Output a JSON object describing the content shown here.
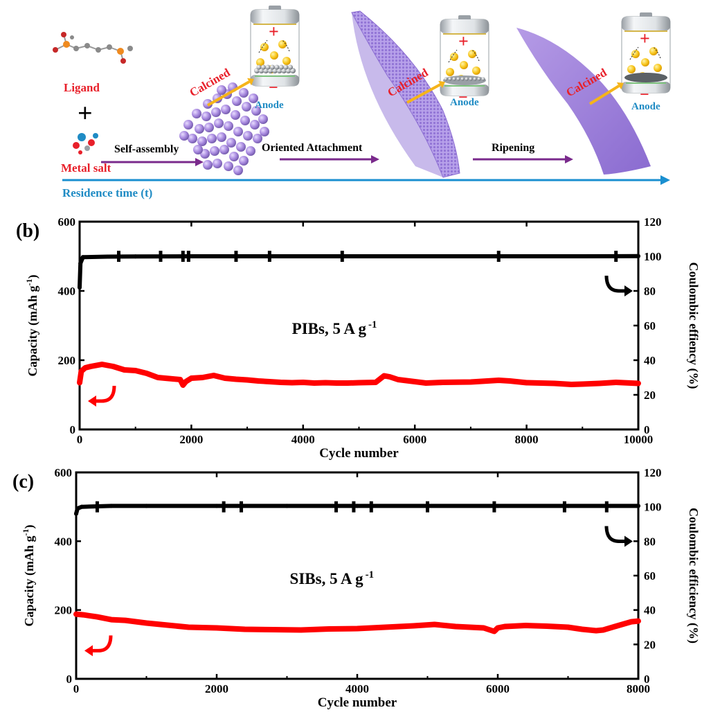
{
  "scheme": {
    "ligand_label": "Ligand",
    "plus_sign": "+",
    "metal_salt_label": "Metal salt",
    "step_self_assembly": "Self-assembly",
    "step_oriented_attachment": "Oriented Attachment",
    "step_ripening": "Ripening",
    "calcined_label": "Calcined",
    "anode_label": "Anode",
    "battery_plus": "+",
    "battery_minus": "−",
    "residence_time_label": "Residence time (t)",
    "colors": {
      "red_text": "#e8202a",
      "blue_text": "#1f8bc4",
      "purple_arrow": "#7a2a8c",
      "blue_axis": "#1a8fd0",
      "gold_arrow": "#f5b41a",
      "lavender": "#a98be0"
    }
  },
  "chart_data": [
    {
      "type": "line",
      "panel_label": "(b)",
      "annotation": "PIBs, 5 A g",
      "annotation_sup": "-1",
      "xlabel": "Cycle number",
      "ylabel_left": "Capacity (mAh g",
      "ylabel_left_sup": "-1",
      "ylabel_left_end": ")",
      "ylabel_right": "Coulombic effiency (%)",
      "xlim": [
        0,
        10000
      ],
      "ylim_left": [
        0,
        600
      ],
      "ylim_right": [
        0,
        120
      ],
      "xticks": [
        "0",
        "2000",
        "4000",
        "6000",
        "8000",
        "10000"
      ],
      "yticks_left": [
        "0",
        "200",
        "400",
        "600"
      ],
      "yticks_right": [
        "0",
        "20",
        "40",
        "60",
        "80",
        "100",
        "120"
      ],
      "series": [
        {
          "axis": "left",
          "color": "#ff0000",
          "x": [
            0,
            30,
            100,
            200,
            400,
            600,
            800,
            1000,
            1200,
            1400,
            1600,
            1800,
            1850,
            1900,
            2000,
            2200,
            2400,
            2600,
            2800,
            3000,
            3200,
            3400,
            3600,
            3800,
            4000,
            4200,
            4400,
            4600,
            4800,
            5000,
            5300,
            5450,
            5550,
            5700,
            6000,
            6200,
            6500,
            7000,
            7500,
            7700,
            8000,
            8500,
            8800,
            9000,
            9300,
            9600,
            10000
          ],
          "values": [
            135,
            168,
            178,
            182,
            188,
            182,
            172,
            170,
            162,
            150,
            147,
            144,
            128,
            138,
            148,
            150,
            156,
            148,
            145,
            143,
            140,
            138,
            136,
            135,
            136,
            134,
            135,
            134,
            134,
            135,
            136,
            155,
            152,
            144,
            138,
            134,
            136,
            137,
            142,
            140,
            135,
            133,
            130,
            131,
            133,
            136,
            133
          ]
        },
        {
          "axis": "right",
          "color": "#000000",
          "x": [
            0,
            15,
            60,
            500,
            1000,
            2000,
            3000,
            4000,
            5000,
            6000,
            7000,
            8000,
            9000,
            10000
          ],
          "values": [
            82,
            96,
            99.5,
            99.8,
            99.9,
            100,
            100,
            100,
            100,
            100,
            100,
            100,
            100,
            100.1
          ]
        }
      ],
      "right_spikes_x": [
        700,
        1450,
        1850,
        1950,
        2800,
        3400,
        4700,
        7500,
        9600
      ],
      "left_series_arrow": "left",
      "right_series_arrow": "right"
    },
    {
      "type": "line",
      "panel_label": "(c)",
      "annotation": "SIBs, 5 A g",
      "annotation_sup": "-1",
      "xlabel": "Cycle number",
      "ylabel_left": "Capacity (mAh g",
      "ylabel_left_sup": "-1",
      "ylabel_left_end": ")",
      "ylabel_right": "Coulombic efficiency (%)",
      "xlim": [
        0,
        8000
      ],
      "ylim_left": [
        0,
        600
      ],
      "ylim_right": [
        0,
        120
      ],
      "xticks": [
        "0",
        "2000",
        "4000",
        "6000",
        "8000"
      ],
      "yticks_left": [
        "0",
        "200",
        "400",
        "600"
      ],
      "yticks_right": [
        "0",
        "20",
        "40",
        "60",
        "80",
        "100",
        "120"
      ],
      "series": [
        {
          "axis": "left",
          "color": "#ff0000",
          "x": [
            0,
            100,
            300,
            500,
            700,
            1000,
            1300,
            1600,
            2000,
            2400,
            2800,
            3200,
            3600,
            4000,
            4400,
            4800,
            5100,
            5400,
            5800,
            5950,
            6000,
            6100,
            6400,
            6700,
            7000,
            7200,
            7400,
            7500,
            7700,
            7900,
            8000
          ],
          "values": [
            188,
            186,
            180,
            172,
            170,
            162,
            156,
            150,
            148,
            144,
            143,
            142,
            145,
            146,
            150,
            154,
            158,
            152,
            148,
            138,
            148,
            152,
            155,
            153,
            150,
            144,
            140,
            142,
            154,
            166,
            168
          ]
        },
        {
          "axis": "right",
          "color": "#000000",
          "x": [
            0,
            20,
            80,
            500,
            1000,
            2000,
            3000,
            4000,
            5000,
            6000,
            7000,
            8000
          ],
          "values": [
            96,
            99,
            100,
            100.5,
            100.5,
            100.5,
            100.5,
            100.5,
            100.5,
            100.5,
            100.5,
            100.5
          ]
        }
      ],
      "right_spikes_x": [
        300,
        2100,
        2350,
        3700,
        3950,
        4200,
        5000,
        5950,
        6950,
        7550
      ],
      "left_series_arrow": "left",
      "right_series_arrow": "right"
    }
  ]
}
